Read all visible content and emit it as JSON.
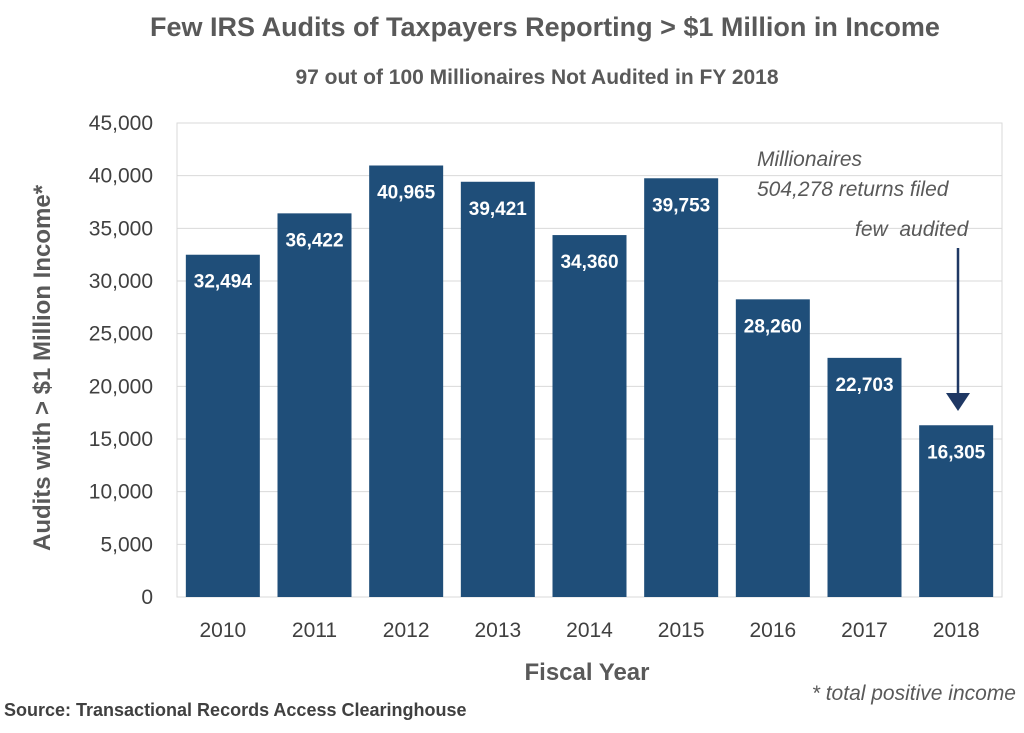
{
  "chart_data": {
    "type": "bar",
    "title": "Few IRS Audits of Taxpayers Reporting > $1 Million in Income",
    "subtitle": "97 out of 100 Millionaires Not Audited in FY 2018",
    "xlabel": "Fiscal Year",
    "ylabel": "Audits with > $1 Million Income*",
    "categories": [
      "2010",
      "2011",
      "2012",
      "2013",
      "2014",
      "2015",
      "2016",
      "2017",
      "2018"
    ],
    "values": [
      32494,
      36422,
      40965,
      39421,
      34360,
      39753,
      28260,
      22703,
      16305
    ],
    "value_labels": [
      "32,494",
      "36,422",
      "40,965",
      "39,421",
      "34,360",
      "39,753",
      "28,260",
      "22,703",
      "16,305"
    ],
    "ylim": [
      0,
      45000
    ],
    "yticks": [
      0,
      5000,
      10000,
      15000,
      20000,
      25000,
      30000,
      35000,
      40000,
      45000
    ],
    "ytick_labels": [
      "0",
      "5,000",
      "10,000",
      "15,000",
      "20,000",
      "25,000",
      "30,000",
      "35,000",
      "40,000",
      "45,000"
    ],
    "grid": true,
    "bar_color": "#1f4e79",
    "annotation": {
      "lines": [
        "Millionaires",
        "504,278 returns filed",
        "few  audited"
      ],
      "points_to": "2018"
    },
    "footnote": "* total positive income",
    "source": "Source: Transactional Records Access Clearinghouse"
  }
}
